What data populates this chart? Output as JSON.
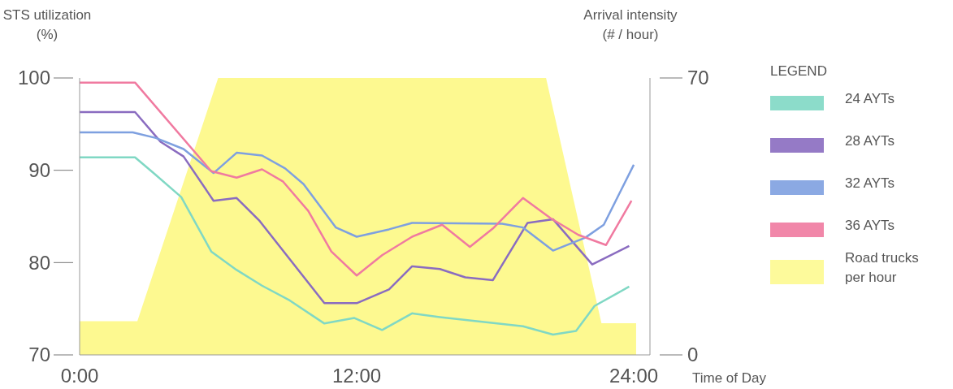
{
  "chart_data": {
    "type": "line",
    "xlabel": "Time of Day",
    "ylabel": "STS utilization\n(%)",
    "y2label": "Arrival intensity\n(# / hour)",
    "legend_title": "LEGEND",
    "legend": "right",
    "grid": false,
    "xlim": [
      0,
      24.7
    ],
    "xticks": [
      {
        "value": 0,
        "label": "0:00"
      },
      {
        "value": 12,
        "label": "12:00"
      },
      {
        "value": 24,
        "label": "24:00"
      }
    ],
    "ylim": [
      70,
      100
    ],
    "yticks": [
      70,
      80,
      90,
      100
    ],
    "y2lim": [
      0,
      70
    ],
    "y2ticks": [
      0,
      70
    ],
    "series": [
      {
        "name": "24 AYTs",
        "color": "#80d8c4",
        "x": [
          0,
          2.4,
          3.2,
          4.4,
          5.7,
          6.8,
          7.9,
          9.1,
          10.6,
          11.9,
          13.1,
          14.4,
          15.6,
          19.2,
          20.5,
          21.5,
          22.3,
          23.8
        ],
        "values": [
          91.4,
          91.4,
          89.7,
          87.1,
          81.2,
          79.2,
          77.5,
          75.9,
          73.4,
          74.0,
          72.7,
          74.5,
          74.1,
          73.1,
          72.2,
          72.6,
          75.3,
          77.4
        ]
      },
      {
        "name": "28 AYTs",
        "color": "#8a6cc0",
        "x": [
          0,
          2.4,
          3.5,
          4.5,
          5.8,
          6.8,
          7.8,
          10.6,
          12.0,
          13.4,
          14.4,
          15.6,
          16.7,
          17.9,
          19.4,
          20.5,
          22.2,
          23.8
        ],
        "values": [
          96.3,
          96.3,
          93.1,
          91.5,
          86.7,
          87.0,
          84.5,
          75.6,
          75.6,
          77.1,
          79.6,
          79.3,
          78.4,
          78.1,
          84.3,
          84.7,
          79.8,
          81.8
        ]
      },
      {
        "name": "32 AYTs",
        "color": "#7ea0e0",
        "x": [
          0,
          2.3,
          3.3,
          4.5,
          5.8,
          6.8,
          7.9,
          8.9,
          9.7,
          11.1,
          12.0,
          13.4,
          14.4,
          18.3,
          19.2,
          20.5,
          21.9,
          22.7,
          24.0
        ],
        "values": [
          94.1,
          94.1,
          93.5,
          92.3,
          89.7,
          91.9,
          91.6,
          90.2,
          88.5,
          83.8,
          82.8,
          83.6,
          84.3,
          84.2,
          83.8,
          81.3,
          82.7,
          84.1,
          90.6
        ]
      },
      {
        "name": "36 AYTs",
        "color": "#f07aa0",
        "x": [
          0,
          2.4,
          5.7,
          6.8,
          7.9,
          8.8,
          9.9,
          10.9,
          12.0,
          13.1,
          14.4,
          15.7,
          16.9,
          17.9,
          19.2,
          20.4,
          21.6,
          22.8,
          23.9
        ],
        "values": [
          99.5,
          99.5,
          89.9,
          89.2,
          90.1,
          88.8,
          85.6,
          81.2,
          78.6,
          80.8,
          82.8,
          84.1,
          81.7,
          83.7,
          87.0,
          84.8,
          83.0,
          81.9,
          86.7
        ]
      },
      {
        "name": "Road trucks\nper hour",
        "type": "area",
        "axis": "y2",
        "color": "#fdf990",
        "x": [
          0,
          2.5,
          6.0,
          20.2,
          22.6,
          24.1
        ],
        "values": [
          8.5,
          8.5,
          70,
          70,
          8,
          8
        ]
      }
    ]
  }
}
